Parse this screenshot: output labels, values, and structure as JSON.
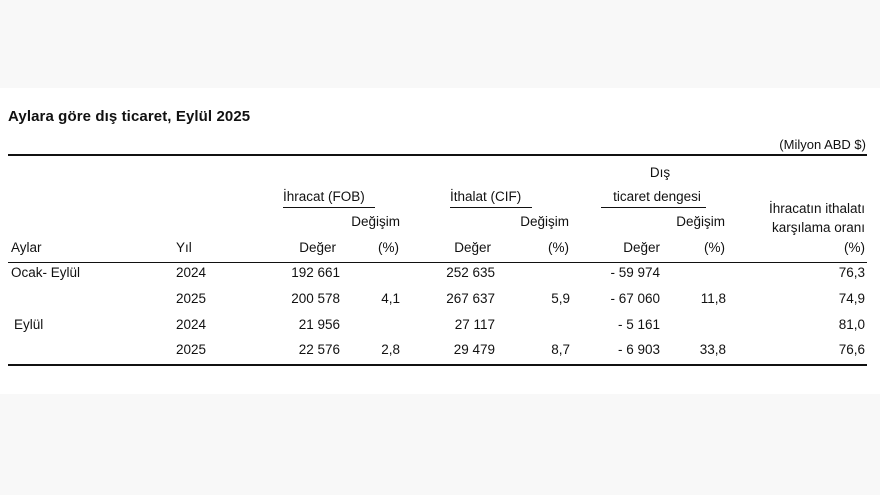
{
  "title": "Aylara göre dış ticaret, Eylül 2025",
  "unit": "(Milyon ABD $)",
  "headers": {
    "export_group": "İhracat (FOB)",
    "import_group": "İthalat (CIF)",
    "balance_group_line1": "Dış",
    "balance_group_line2": "ticaret dengesi",
    "coverage_line1": "İhracatın ithalatı",
    "coverage_line2": "karşılama oranı",
    "change": "Değişim",
    "months": "Aylar",
    "year": "Yıl",
    "value": "Değer",
    "pct": "(%)"
  },
  "rows": [
    {
      "period": "Ocak- Eylül",
      "year": "2024",
      "exp": "192 661",
      "exp_chg": "",
      "imp": "252 635",
      "imp_chg": "",
      "bal": "- 59 974",
      "bal_chg": "",
      "cov": "76,3"
    },
    {
      "period": "",
      "year": "2025",
      "exp": "200 578",
      "exp_chg": "4,1",
      "imp": "267 637",
      "imp_chg": "5,9",
      "bal": "- 67 060",
      "bal_chg": "11,8",
      "cov": "74,9"
    },
    {
      "period": "Eylül",
      "year": "2024",
      "exp": "21 956",
      "exp_chg": "",
      "imp": "27 117",
      "imp_chg": "",
      "bal": "- 5 161",
      "bal_chg": "",
      "cov": "81,0"
    },
    {
      "period": "",
      "year": "2025",
      "exp": "22 576",
      "exp_chg": "2,8",
      "imp": "29 479",
      "imp_chg": "8,7",
      "bal": "- 6 903",
      "bal_chg": "33,8",
      "cov": "76,6"
    }
  ]
}
